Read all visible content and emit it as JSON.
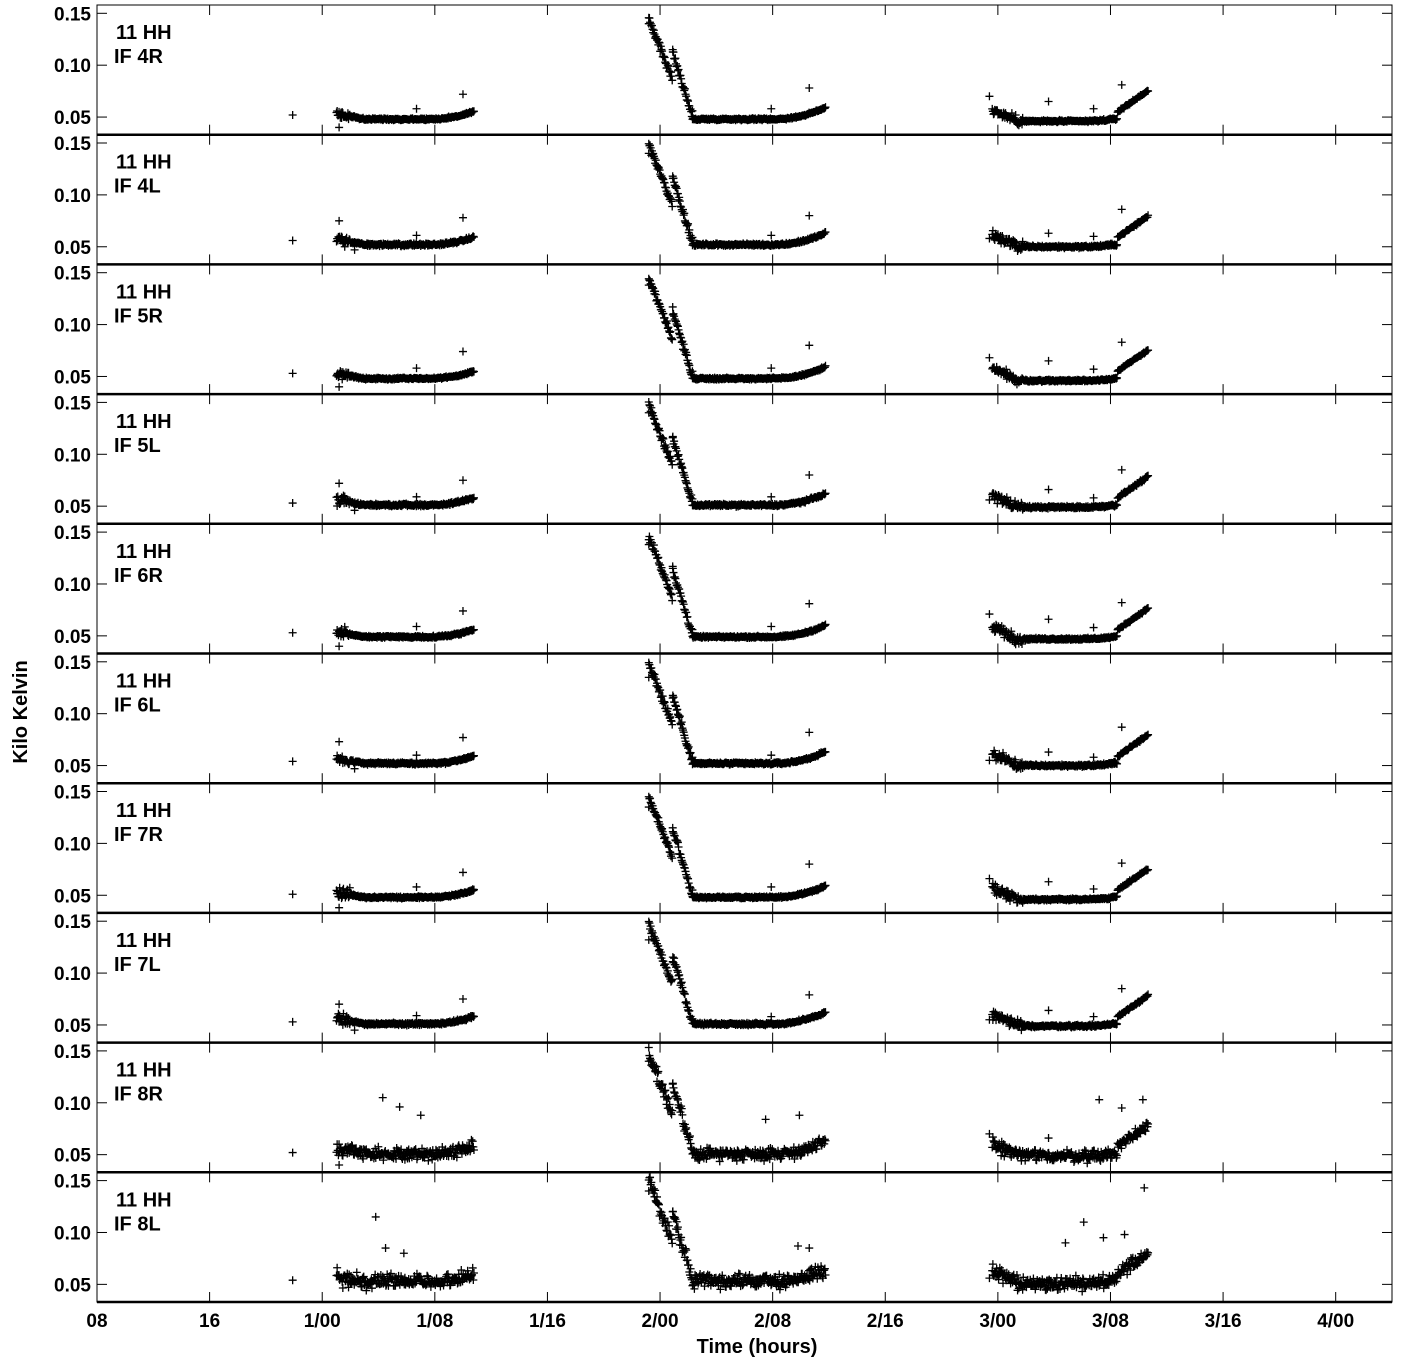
{
  "chart_data": {
    "type": "scatter",
    "xlabel": "Time (hours)",
    "ylabel": "Kilo Kelvin",
    "xlim": [
      8,
      100
    ],
    "ylim": [
      0.033,
      0.158
    ],
    "x_ticks": [
      {
        "value": 8,
        "label": "08"
      },
      {
        "value": 16,
        "label": "16"
      },
      {
        "value": 24,
        "label": "1/00"
      },
      {
        "value": 32,
        "label": "1/08"
      },
      {
        "value": 40,
        "label": "1/16"
      },
      {
        "value": 48,
        "label": "2/00"
      },
      {
        "value": 56,
        "label": "2/08"
      },
      {
        "value": 64,
        "label": "2/16"
      },
      {
        "value": 72,
        "label": "3/00"
      },
      {
        "value": 80,
        "label": "3/08"
      },
      {
        "value": 88,
        "label": "3/16"
      },
      {
        "value": 96,
        "label": "4/00"
      }
    ],
    "y_ticks": [
      {
        "value": 0.05,
        "label": "0.05"
      },
      {
        "value": 0.1,
        "label": "0.10"
      },
      {
        "value": 0.15,
        "label": "0.15"
      }
    ],
    "grid": false,
    "marker": "+",
    "panels": [
      {
        "label1": "11 HH",
        "label2": "IF 4R",
        "noise": 0.0012,
        "offset": 0.0,
        "outliers": [
          [
            21.9,
            0.052
          ],
          [
            25.2,
            0.04
          ],
          [
            30.7,
            0.058
          ],
          [
            34.0,
            0.072
          ],
          [
            47.2,
            0.14
          ],
          [
            48.9,
            0.115
          ],
          [
            50.3,
            0.056
          ],
          [
            55.9,
            0.058
          ],
          [
            58.6,
            0.078
          ],
          [
            71.4,
            0.07
          ],
          [
            75.6,
            0.065
          ],
          [
            80.8,
            0.081
          ],
          [
            78.8,
            0.058
          ]
        ]
      },
      {
        "label1": "11 HH",
        "label2": "IF 4L",
        "noise": 0.0015,
        "offset": 0.004,
        "outliers": [
          [
            21.9,
            0.056
          ],
          [
            25.2,
            0.075
          ],
          [
            26.3,
            0.047
          ],
          [
            30.7,
            0.061
          ],
          [
            34.0,
            0.078
          ],
          [
            47.2,
            0.14
          ],
          [
            48.9,
            0.118
          ],
          [
            50.3,
            0.059
          ],
          [
            55.9,
            0.061
          ],
          [
            58.6,
            0.08
          ],
          [
            71.4,
            0.058
          ],
          [
            75.6,
            0.063
          ],
          [
            80.8,
            0.086
          ],
          [
            78.8,
            0.06
          ]
        ]
      },
      {
        "label1": "11 HH",
        "label2": "IF 5R",
        "noise": 0.0012,
        "offset": 0.0,
        "outliers": [
          [
            21.9,
            0.053
          ],
          [
            25.2,
            0.04
          ],
          [
            30.7,
            0.058
          ],
          [
            34.0,
            0.074
          ],
          [
            47.2,
            0.138
          ],
          [
            48.9,
            0.117
          ],
          [
            50.3,
            0.055
          ],
          [
            55.9,
            0.058
          ],
          [
            58.6,
            0.08
          ],
          [
            71.4,
            0.068
          ],
          [
            75.6,
            0.065
          ],
          [
            80.8,
            0.083
          ],
          [
            78.8,
            0.057
          ]
        ]
      },
      {
        "label1": "11 HH",
        "label2": "IF 5L",
        "noise": 0.0015,
        "offset": 0.003,
        "outliers": [
          [
            21.9,
            0.053
          ],
          [
            25.2,
            0.072
          ],
          [
            26.3,
            0.046
          ],
          [
            30.7,
            0.059
          ],
          [
            34.0,
            0.075
          ],
          [
            47.2,
            0.14
          ],
          [
            48.9,
            0.116
          ],
          [
            50.3,
            0.057
          ],
          [
            55.9,
            0.059
          ],
          [
            58.6,
            0.08
          ],
          [
            71.4,
            0.056
          ],
          [
            75.6,
            0.066
          ],
          [
            80.8,
            0.085
          ],
          [
            78.8,
            0.058
          ]
        ]
      },
      {
        "label1": "11 HH",
        "label2": "IF 6R",
        "noise": 0.0012,
        "offset": 0.001,
        "outliers": [
          [
            21.9,
            0.053
          ],
          [
            25.2,
            0.04
          ],
          [
            30.7,
            0.059
          ],
          [
            34.0,
            0.074
          ],
          [
            47.2,
            0.138
          ],
          [
            48.9,
            0.117
          ],
          [
            50.3,
            0.056
          ],
          [
            55.9,
            0.059
          ],
          [
            58.6,
            0.081
          ],
          [
            71.4,
            0.071
          ],
          [
            75.6,
            0.066
          ],
          [
            80.8,
            0.082
          ],
          [
            78.8,
            0.058
          ]
        ]
      },
      {
        "label1": "11 HH",
        "label2": "IF 6L",
        "noise": 0.0015,
        "offset": 0.004,
        "outliers": [
          [
            21.9,
            0.054
          ],
          [
            25.2,
            0.073
          ],
          [
            26.3,
            0.047
          ],
          [
            30.7,
            0.06
          ],
          [
            34.0,
            0.077
          ],
          [
            47.2,
            0.135
          ],
          [
            48.9,
            0.115
          ],
          [
            50.3,
            0.058
          ],
          [
            55.9,
            0.06
          ],
          [
            58.6,
            0.082
          ],
          [
            71.4,
            0.055
          ],
          [
            75.6,
            0.063
          ],
          [
            80.8,
            0.087
          ],
          [
            78.8,
            0.058
          ]
        ]
      },
      {
        "label1": "11 HH",
        "label2": "IF 7R",
        "noise": 0.0012,
        "offset": 0.0,
        "outliers": [
          [
            21.9,
            0.051
          ],
          [
            25.2,
            0.038
          ],
          [
            30.7,
            0.058
          ],
          [
            34.0,
            0.072
          ],
          [
            47.2,
            0.135
          ],
          [
            48.9,
            0.115
          ],
          [
            50.3,
            0.055
          ],
          [
            55.9,
            0.058
          ],
          [
            58.6,
            0.08
          ],
          [
            71.4,
            0.066
          ],
          [
            75.6,
            0.063
          ],
          [
            80.8,
            0.081
          ],
          [
            78.8,
            0.056
          ]
        ]
      },
      {
        "label1": "11 HH",
        "label2": "IF 7L",
        "noise": 0.0015,
        "offset": 0.003,
        "outliers": [
          [
            21.9,
            0.053
          ],
          [
            25.2,
            0.07
          ],
          [
            26.3,
            0.045
          ],
          [
            30.7,
            0.059
          ],
          [
            34.0,
            0.075
          ],
          [
            47.2,
            0.132
          ],
          [
            48.9,
            0.111
          ],
          [
            50.3,
            0.056
          ],
          [
            55.9,
            0.058
          ],
          [
            58.6,
            0.079
          ],
          [
            71.4,
            0.055
          ],
          [
            75.6,
            0.064
          ],
          [
            80.8,
            0.085
          ],
          [
            78.8,
            0.058
          ]
        ]
      },
      {
        "label1": "11 HH",
        "label2": "IF 8R",
        "noise": 0.007,
        "offset": 0.003,
        "outliers": [
          [
            21.9,
            0.052
          ],
          [
            25.2,
            0.04
          ],
          [
            28.3,
            0.105
          ],
          [
            29.5,
            0.096
          ],
          [
            31.0,
            0.088
          ],
          [
            47.2,
            0.14
          ],
          [
            48.9,
            0.118
          ],
          [
            55.5,
            0.084
          ],
          [
            57.9,
            0.088
          ],
          [
            71.4,
            0.07
          ],
          [
            75.6,
            0.066
          ],
          [
            79.2,
            0.103
          ],
          [
            80.8,
            0.095
          ],
          [
            82.3,
            0.103
          ]
        ]
      },
      {
        "label1": "11 HH",
        "label2": "IF 8L",
        "noise": 0.008,
        "offset": 0.005,
        "outliers": [
          [
            21.9,
            0.054
          ],
          [
            27.8,
            0.115
          ],
          [
            28.5,
            0.085
          ],
          [
            29.8,
            0.08
          ],
          [
            47.2,
            0.14
          ],
          [
            48.9,
            0.12
          ],
          [
            57.8,
            0.087
          ],
          [
            58.6,
            0.085
          ],
          [
            71.4,
            0.056
          ],
          [
            76.8,
            0.09
          ],
          [
            78.1,
            0.11
          ],
          [
            79.5,
            0.095
          ],
          [
            81.0,
            0.098
          ],
          [
            82.4,
            0.143
          ]
        ]
      }
    ]
  }
}
